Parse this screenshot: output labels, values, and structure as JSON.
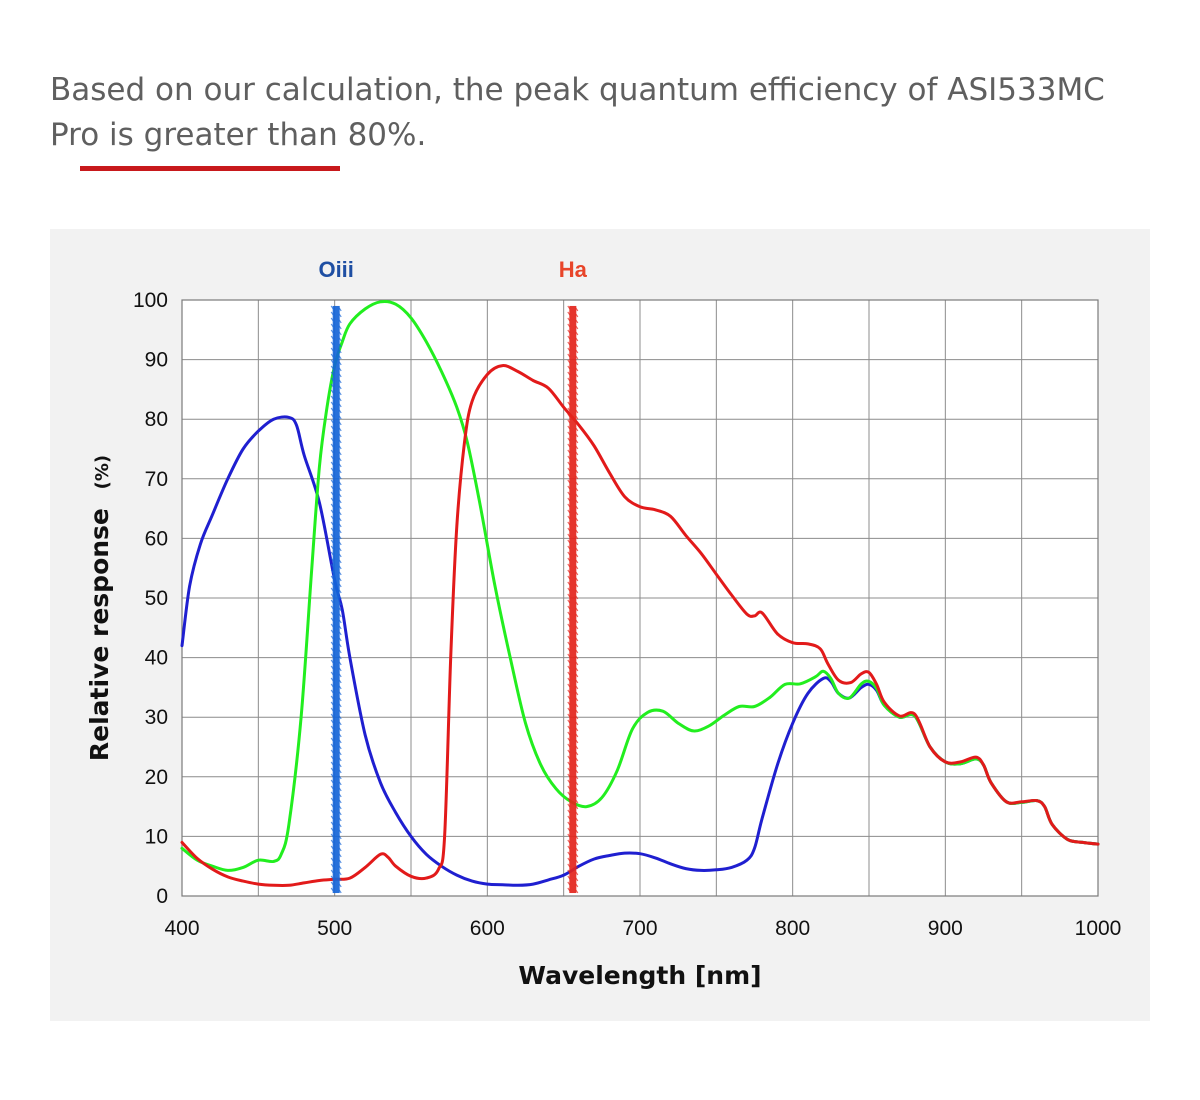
{
  "intro": {
    "text": "Based on our calculation, the peak quantum efficiency of ASI533MC Pro is greater than 80%."
  },
  "colors": {
    "accent_rule": "#c8191c",
    "text": "#5f5f5f",
    "panel_bg": "#f2f2f2",
    "grid": "#8c8c8c"
  },
  "chart_data": {
    "type": "line",
    "title": "",
    "xlabel": "Wavelength [nm]",
    "ylabel": "Relative response",
    "ylabel_unit": "(%)",
    "xlim": [
      400,
      1000
    ],
    "ylim": [
      0,
      100
    ],
    "x_ticks": [
      400,
      500,
      600,
      700,
      800,
      900,
      1000
    ],
    "y_ticks": [
      0,
      10,
      20,
      30,
      40,
      50,
      60,
      70,
      80,
      90,
      100
    ],
    "grid": true,
    "markers": [
      {
        "label": "Oiii",
        "x": 501,
        "color": "#1565d8",
        "label_color": "#1f4fa3"
      },
      {
        "label": "Ha",
        "x": 656,
        "color": "#e3241b",
        "label_color": "#e8452a"
      }
    ],
    "series": [
      {
        "color": "#1f1fd0",
        "points": [
          [
            400,
            42
          ],
          [
            405,
            52
          ],
          [
            412,
            59
          ],
          [
            420,
            64
          ],
          [
            430,
            70
          ],
          [
            440,
            75
          ],
          [
            450,
            78
          ],
          [
            460,
            80
          ],
          [
            470,
            80.3
          ],
          [
            475,
            79
          ],
          [
            480,
            74
          ],
          [
            490,
            66
          ],
          [
            500,
            53
          ],
          [
            505,
            48
          ],
          [
            510,
            40
          ],
          [
            520,
            27
          ],
          [
            530,
            19
          ],
          [
            540,
            14
          ],
          [
            550,
            10
          ],
          [
            560,
            7
          ],
          [
            570,
            5
          ],
          [
            580,
            3.5
          ],
          [
            590,
            2.5
          ],
          [
            600,
            2
          ],
          [
            610,
            1.9
          ],
          [
            620,
            1.8
          ],
          [
            630,
            2
          ],
          [
            640,
            2.7
          ],
          [
            650,
            3.5
          ],
          [
            660,
            5
          ],
          [
            670,
            6.2
          ],
          [
            680,
            6.8
          ],
          [
            690,
            7.2
          ],
          [
            700,
            7.1
          ],
          [
            710,
            6.4
          ],
          [
            720,
            5.4
          ],
          [
            730,
            4.6
          ],
          [
            740,
            4.3
          ],
          [
            750,
            4.4
          ],
          [
            760,
            4.8
          ],
          [
            770,
            6
          ],
          [
            775,
            8
          ],
          [
            780,
            13
          ],
          [
            790,
            22
          ],
          [
            800,
            29
          ],
          [
            810,
            34
          ],
          [
            820,
            36.5
          ],
          [
            825,
            36
          ],
          [
            830,
            34
          ],
          [
            837,
            33.2
          ],
          [
            845,
            35
          ],
          [
            850,
            35.5
          ],
          [
            855,
            34.5
          ],
          [
            860,
            32
          ],
          [
            870,
            30
          ],
          [
            880,
            30.2
          ],
          [
            890,
            25
          ],
          [
            900,
            22.5
          ],
          [
            910,
            22.2
          ],
          [
            920,
            23
          ],
          [
            925,
            22
          ],
          [
            930,
            19
          ],
          [
            940,
            15.8
          ],
          [
            950,
            15.7
          ],
          [
            960,
            16
          ],
          [
            965,
            15
          ],
          [
            970,
            12
          ],
          [
            980,
            9.5
          ],
          [
            990,
            9
          ],
          [
            1000,
            8.7
          ]
        ]
      },
      {
        "color": "#22ee1f",
        "points": [
          [
            400,
            8
          ],
          [
            410,
            6
          ],
          [
            420,
            5
          ],
          [
            430,
            4.3
          ],
          [
            440,
            4.8
          ],
          [
            450,
            6
          ],
          [
            460,
            5.8
          ],
          [
            465,
            7
          ],
          [
            470,
            12
          ],
          [
            478,
            30
          ],
          [
            485,
            55
          ],
          [
            490,
            72
          ],
          [
            495,
            82
          ],
          [
            500,
            89
          ],
          [
            505,
            93
          ],
          [
            510,
            96
          ],
          [
            520,
            98.5
          ],
          [
            530,
            99.7
          ],
          [
            540,
            99.3
          ],
          [
            550,
            97
          ],
          [
            560,
            93
          ],
          [
            570,
            88
          ],
          [
            580,
            82
          ],
          [
            587,
            76
          ],
          [
            595,
            66
          ],
          [
            605,
            52
          ],
          [
            615,
            40
          ],
          [
            625,
            29
          ],
          [
            635,
            22
          ],
          [
            645,
            18
          ],
          [
            655,
            15.8
          ],
          [
            665,
            15
          ],
          [
            675,
            16.5
          ],
          [
            685,
            21
          ],
          [
            695,
            28
          ],
          [
            705,
            30.8
          ],
          [
            715,
            31
          ],
          [
            725,
            29
          ],
          [
            735,
            27.7
          ],
          [
            745,
            28.5
          ],
          [
            755,
            30.3
          ],
          [
            765,
            31.8
          ],
          [
            775,
            31.8
          ],
          [
            785,
            33.3
          ],
          [
            795,
            35.5
          ],
          [
            805,
            35.6
          ],
          [
            815,
            36.8
          ],
          [
            820,
            37.7
          ],
          [
            825,
            36.5
          ],
          [
            830,
            34
          ],
          [
            837,
            33.2
          ],
          [
            845,
            35.6
          ],
          [
            850,
            36
          ],
          [
            855,
            34.8
          ],
          [
            860,
            32
          ],
          [
            870,
            30
          ],
          [
            880,
            30.2
          ],
          [
            890,
            25
          ],
          [
            900,
            22.5
          ],
          [
            910,
            22.2
          ],
          [
            920,
            23
          ],
          [
            925,
            22
          ],
          [
            930,
            19
          ],
          [
            940,
            15.8
          ],
          [
            950,
            15.7
          ],
          [
            960,
            16
          ],
          [
            965,
            15
          ],
          [
            970,
            12
          ],
          [
            980,
            9.5
          ],
          [
            990,
            9
          ],
          [
            1000,
            8.7
          ]
        ]
      },
      {
        "color": "#e21a1a",
        "points": [
          [
            400,
            9
          ],
          [
            410,
            6.3
          ],
          [
            420,
            4.5
          ],
          [
            430,
            3.2
          ],
          [
            440,
            2.5
          ],
          [
            450,
            2
          ],
          [
            460,
            1.8
          ],
          [
            470,
            1.8
          ],
          [
            480,
            2.2
          ],
          [
            490,
            2.6
          ],
          [
            500,
            2.8
          ],
          [
            510,
            3
          ],
          [
            520,
            4.8
          ],
          [
            530,
            7
          ],
          [
            535,
            6.5
          ],
          [
            540,
            5
          ],
          [
            550,
            3.3
          ],
          [
            560,
            3
          ],
          [
            568,
            4.5
          ],
          [
            572,
            10
          ],
          [
            576,
            40
          ],
          [
            580,
            62
          ],
          [
            585,
            76
          ],
          [
            590,
            83
          ],
          [
            600,
            87.5
          ],
          [
            610,
            89
          ],
          [
            620,
            88
          ],
          [
            630,
            86.5
          ],
          [
            640,
            85.2
          ],
          [
            650,
            82
          ],
          [
            660,
            79
          ],
          [
            670,
            75.5
          ],
          [
            680,
            71
          ],
          [
            690,
            67
          ],
          [
            700,
            65.3
          ],
          [
            710,
            64.8
          ],
          [
            720,
            63.7
          ],
          [
            730,
            60.5
          ],
          [
            740,
            57.5
          ],
          [
            750,
            54
          ],
          [
            760,
            50.5
          ],
          [
            770,
            47.3
          ],
          [
            775,
            47
          ],
          [
            780,
            47.5
          ],
          [
            790,
            44
          ],
          [
            800,
            42.5
          ],
          [
            810,
            42.3
          ],
          [
            818,
            41.5
          ],
          [
            823,
            39
          ],
          [
            830,
            36.2
          ],
          [
            838,
            35.8
          ],
          [
            845,
            37.3
          ],
          [
            850,
            37.5
          ],
          [
            855,
            35.5
          ],
          [
            860,
            32.5
          ],
          [
            870,
            30.2
          ],
          [
            880,
            30.5
          ],
          [
            890,
            25
          ],
          [
            900,
            22.5
          ],
          [
            910,
            22.5
          ],
          [
            920,
            23.3
          ],
          [
            925,
            22
          ],
          [
            930,
            19
          ],
          [
            940,
            15.8
          ],
          [
            950,
            15.8
          ],
          [
            960,
            16
          ],
          [
            965,
            15
          ],
          [
            970,
            12
          ],
          [
            980,
            9.5
          ],
          [
            990,
            9
          ],
          [
            1000,
            8.7
          ]
        ]
      }
    ]
  }
}
